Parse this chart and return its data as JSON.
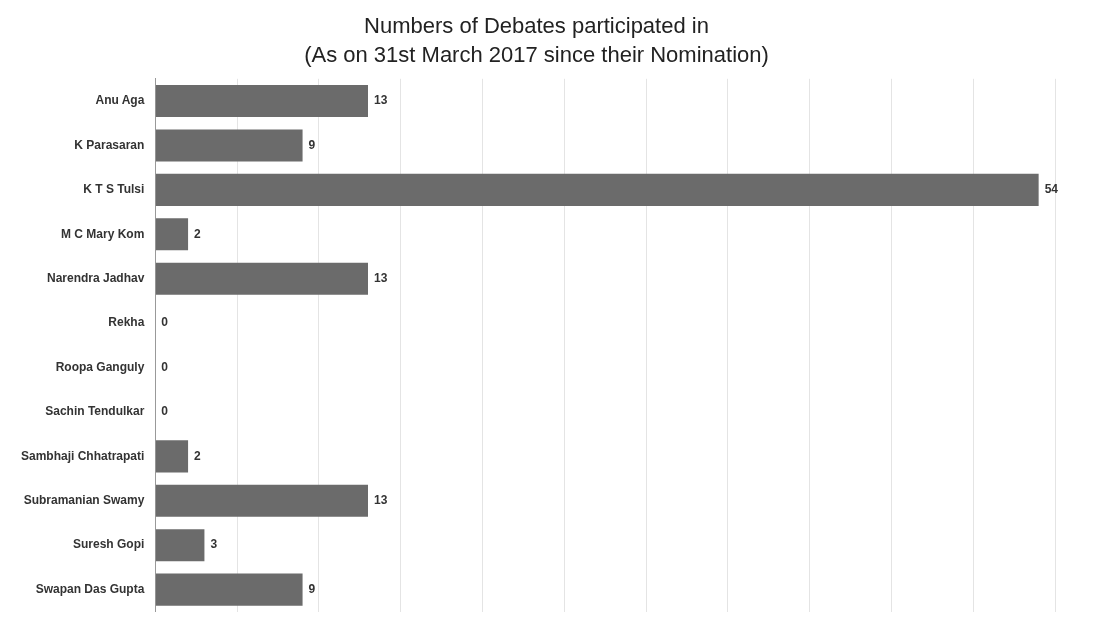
{
  "chart_data": {
    "type": "bar",
    "orientation": "horizontal",
    "title": "Numbers of Debates participated in",
    "subtitle": "(As on 31st March 2017 since their Nomination)",
    "categories": [
      "Anu Aga",
      "K Parasaran",
      "K T S Tulsi",
      "M C Mary Kom",
      "Narendra Jadhav",
      "Rekha",
      "Roopa Ganguly",
      "Sachin Tendulkar",
      "Sambhaji Chhatrapati",
      "Subramanian Swamy",
      "Suresh Gopi",
      "Swapan Das Gupta"
    ],
    "values": [
      13,
      9,
      54,
      2,
      13,
      0,
      0,
      0,
      2,
      13,
      3,
      9
    ],
    "color": "#6b6b6b",
    "data_labels": true,
    "grid": "x",
    "tick_labels": "y",
    "legend": false,
    "xlim": [
      0,
      55
    ],
    "xticks": [
      {
        "value": 0,
        "label": null
      },
      {
        "value": 5,
        "label": null
      },
      {
        "value": 10,
        "label": null
      },
      {
        "value": 15,
        "label": null
      },
      {
        "value": 20,
        "label": null
      },
      {
        "value": 25,
        "label": null
      },
      {
        "value": 30,
        "label": null
      },
      {
        "value": 35,
        "label": null
      },
      {
        "value": 40,
        "label": null
      },
      {
        "value": 45,
        "label": null
      },
      {
        "value": 50,
        "label": null
      },
      {
        "value": 55,
        "label": null
      }
    ]
  }
}
